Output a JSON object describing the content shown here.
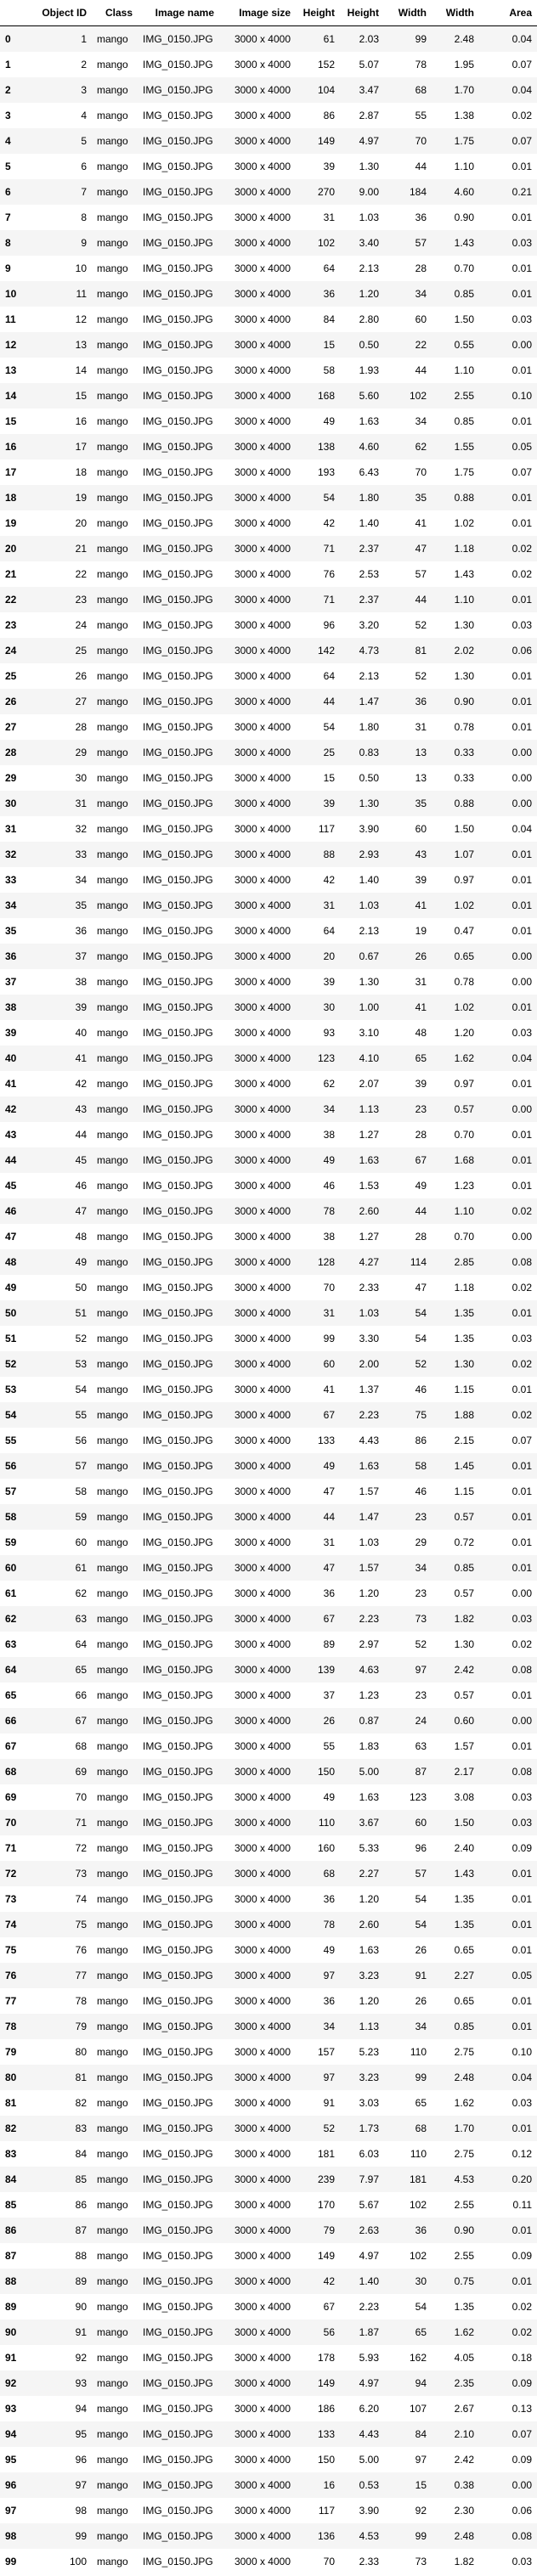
{
  "table": {
    "columns": [
      "",
      "Object ID",
      "Class",
      "Image name",
      "Image size",
      "Height",
      "Height",
      "Width",
      "Width",
      "Area"
    ],
    "rows": [
      [
        "0",
        "1",
        "mango",
        "IMG_0150.JPG",
        "3000 x 4000",
        "61",
        "2.03",
        "99",
        "2.48",
        "0.04"
      ],
      [
        "1",
        "2",
        "mango",
        "IMG_0150.JPG",
        "3000 x 4000",
        "152",
        "5.07",
        "78",
        "1.95",
        "0.07"
      ],
      [
        "2",
        "3",
        "mango",
        "IMG_0150.JPG",
        "3000 x 4000",
        "104",
        "3.47",
        "68",
        "1.70",
        "0.04"
      ],
      [
        "3",
        "4",
        "mango",
        "IMG_0150.JPG",
        "3000 x 4000",
        "86",
        "2.87",
        "55",
        "1.38",
        "0.02"
      ],
      [
        "4",
        "5",
        "mango",
        "IMG_0150.JPG",
        "3000 x 4000",
        "149",
        "4.97",
        "70",
        "1.75",
        "0.07"
      ],
      [
        "5",
        "6",
        "mango",
        "IMG_0150.JPG",
        "3000 x 4000",
        "39",
        "1.30",
        "44",
        "1.10",
        "0.01"
      ],
      [
        "6",
        "7",
        "mango",
        "IMG_0150.JPG",
        "3000 x 4000",
        "270",
        "9.00",
        "184",
        "4.60",
        "0.21"
      ],
      [
        "7",
        "8",
        "mango",
        "IMG_0150.JPG",
        "3000 x 4000",
        "31",
        "1.03",
        "36",
        "0.90",
        "0.01"
      ],
      [
        "8",
        "9",
        "mango",
        "IMG_0150.JPG",
        "3000 x 4000",
        "102",
        "3.40",
        "57",
        "1.43",
        "0.03"
      ],
      [
        "9",
        "10",
        "mango",
        "IMG_0150.JPG",
        "3000 x 4000",
        "64",
        "2.13",
        "28",
        "0.70",
        "0.01"
      ],
      [
        "10",
        "11",
        "mango",
        "IMG_0150.JPG",
        "3000 x 4000",
        "36",
        "1.20",
        "34",
        "0.85",
        "0.01"
      ],
      [
        "11",
        "12",
        "mango",
        "IMG_0150.JPG",
        "3000 x 4000",
        "84",
        "2.80",
        "60",
        "1.50",
        "0.03"
      ],
      [
        "12",
        "13",
        "mango",
        "IMG_0150.JPG",
        "3000 x 4000",
        "15",
        "0.50",
        "22",
        "0.55",
        "0.00"
      ],
      [
        "13",
        "14",
        "mango",
        "IMG_0150.JPG",
        "3000 x 4000",
        "58",
        "1.93",
        "44",
        "1.10",
        "0.01"
      ],
      [
        "14",
        "15",
        "mango",
        "IMG_0150.JPG",
        "3000 x 4000",
        "168",
        "5.60",
        "102",
        "2.55",
        "0.10"
      ],
      [
        "15",
        "16",
        "mango",
        "IMG_0150.JPG",
        "3000 x 4000",
        "49",
        "1.63",
        "34",
        "0.85",
        "0.01"
      ],
      [
        "16",
        "17",
        "mango",
        "IMG_0150.JPG",
        "3000 x 4000",
        "138",
        "4.60",
        "62",
        "1.55",
        "0.05"
      ],
      [
        "17",
        "18",
        "mango",
        "IMG_0150.JPG",
        "3000 x 4000",
        "193",
        "6.43",
        "70",
        "1.75",
        "0.07"
      ],
      [
        "18",
        "19",
        "mango",
        "IMG_0150.JPG",
        "3000 x 4000",
        "54",
        "1.80",
        "35",
        "0.88",
        "0.01"
      ],
      [
        "19",
        "20",
        "mango",
        "IMG_0150.JPG",
        "3000 x 4000",
        "42",
        "1.40",
        "41",
        "1.02",
        "0.01"
      ],
      [
        "20",
        "21",
        "mango",
        "IMG_0150.JPG",
        "3000 x 4000",
        "71",
        "2.37",
        "47",
        "1.18",
        "0.02"
      ],
      [
        "21",
        "22",
        "mango",
        "IMG_0150.JPG",
        "3000 x 4000",
        "76",
        "2.53",
        "57",
        "1.43",
        "0.02"
      ],
      [
        "22",
        "23",
        "mango",
        "IMG_0150.JPG",
        "3000 x 4000",
        "71",
        "2.37",
        "44",
        "1.10",
        "0.01"
      ],
      [
        "23",
        "24",
        "mango",
        "IMG_0150.JPG",
        "3000 x 4000",
        "96",
        "3.20",
        "52",
        "1.30",
        "0.03"
      ],
      [
        "24",
        "25",
        "mango",
        "IMG_0150.JPG",
        "3000 x 4000",
        "142",
        "4.73",
        "81",
        "2.02",
        "0.06"
      ],
      [
        "25",
        "26",
        "mango",
        "IMG_0150.JPG",
        "3000 x 4000",
        "64",
        "2.13",
        "52",
        "1.30",
        "0.01"
      ],
      [
        "26",
        "27",
        "mango",
        "IMG_0150.JPG",
        "3000 x 4000",
        "44",
        "1.47",
        "36",
        "0.90",
        "0.01"
      ],
      [
        "27",
        "28",
        "mango",
        "IMG_0150.JPG",
        "3000 x 4000",
        "54",
        "1.80",
        "31",
        "0.78",
        "0.01"
      ],
      [
        "28",
        "29",
        "mango",
        "IMG_0150.JPG",
        "3000 x 4000",
        "25",
        "0.83",
        "13",
        "0.33",
        "0.00"
      ],
      [
        "29",
        "30",
        "mango",
        "IMG_0150.JPG",
        "3000 x 4000",
        "15",
        "0.50",
        "13",
        "0.33",
        "0.00"
      ],
      [
        "30",
        "31",
        "mango",
        "IMG_0150.JPG",
        "3000 x 4000",
        "39",
        "1.30",
        "35",
        "0.88",
        "0.00"
      ],
      [
        "31",
        "32",
        "mango",
        "IMG_0150.JPG",
        "3000 x 4000",
        "117",
        "3.90",
        "60",
        "1.50",
        "0.04"
      ],
      [
        "32",
        "33",
        "mango",
        "IMG_0150.JPG",
        "3000 x 4000",
        "88",
        "2.93",
        "43",
        "1.07",
        "0.01"
      ],
      [
        "33",
        "34",
        "mango",
        "IMG_0150.JPG",
        "3000 x 4000",
        "42",
        "1.40",
        "39",
        "0.97",
        "0.01"
      ],
      [
        "34",
        "35",
        "mango",
        "IMG_0150.JPG",
        "3000 x 4000",
        "31",
        "1.03",
        "41",
        "1.02",
        "0.01"
      ],
      [
        "35",
        "36",
        "mango",
        "IMG_0150.JPG",
        "3000 x 4000",
        "64",
        "2.13",
        "19",
        "0.47",
        "0.01"
      ],
      [
        "36",
        "37",
        "mango",
        "IMG_0150.JPG",
        "3000 x 4000",
        "20",
        "0.67",
        "26",
        "0.65",
        "0.00"
      ],
      [
        "37",
        "38",
        "mango",
        "IMG_0150.JPG",
        "3000 x 4000",
        "39",
        "1.30",
        "31",
        "0.78",
        "0.00"
      ],
      [
        "38",
        "39",
        "mango",
        "IMG_0150.JPG",
        "3000 x 4000",
        "30",
        "1.00",
        "41",
        "1.02",
        "0.01"
      ],
      [
        "39",
        "40",
        "mango",
        "IMG_0150.JPG",
        "3000 x 4000",
        "93",
        "3.10",
        "48",
        "1.20",
        "0.03"
      ],
      [
        "40",
        "41",
        "mango",
        "IMG_0150.JPG",
        "3000 x 4000",
        "123",
        "4.10",
        "65",
        "1.62",
        "0.04"
      ],
      [
        "41",
        "42",
        "mango",
        "IMG_0150.JPG",
        "3000 x 4000",
        "62",
        "2.07",
        "39",
        "0.97",
        "0.01"
      ],
      [
        "42",
        "43",
        "mango",
        "IMG_0150.JPG",
        "3000 x 4000",
        "34",
        "1.13",
        "23",
        "0.57",
        "0.00"
      ],
      [
        "43",
        "44",
        "mango",
        "IMG_0150.JPG",
        "3000 x 4000",
        "38",
        "1.27",
        "28",
        "0.70",
        "0.01"
      ],
      [
        "44",
        "45",
        "mango",
        "IMG_0150.JPG",
        "3000 x 4000",
        "49",
        "1.63",
        "67",
        "1.68",
        "0.01"
      ],
      [
        "45",
        "46",
        "mango",
        "IMG_0150.JPG",
        "3000 x 4000",
        "46",
        "1.53",
        "49",
        "1.23",
        "0.01"
      ],
      [
        "46",
        "47",
        "mango",
        "IMG_0150.JPG",
        "3000 x 4000",
        "78",
        "2.60",
        "44",
        "1.10",
        "0.02"
      ],
      [
        "47",
        "48",
        "mango",
        "IMG_0150.JPG",
        "3000 x 4000",
        "38",
        "1.27",
        "28",
        "0.70",
        "0.00"
      ],
      [
        "48",
        "49",
        "mango",
        "IMG_0150.JPG",
        "3000 x 4000",
        "128",
        "4.27",
        "114",
        "2.85",
        "0.08"
      ],
      [
        "49",
        "50",
        "mango",
        "IMG_0150.JPG",
        "3000 x 4000",
        "70",
        "2.33",
        "47",
        "1.18",
        "0.02"
      ],
      [
        "50",
        "51",
        "mango",
        "IMG_0150.JPG",
        "3000 x 4000",
        "31",
        "1.03",
        "54",
        "1.35",
        "0.01"
      ],
      [
        "51",
        "52",
        "mango",
        "IMG_0150.JPG",
        "3000 x 4000",
        "99",
        "3.30",
        "54",
        "1.35",
        "0.03"
      ],
      [
        "52",
        "53",
        "mango",
        "IMG_0150.JPG",
        "3000 x 4000",
        "60",
        "2.00",
        "52",
        "1.30",
        "0.02"
      ],
      [
        "53",
        "54",
        "mango",
        "IMG_0150.JPG",
        "3000 x 4000",
        "41",
        "1.37",
        "46",
        "1.15",
        "0.01"
      ],
      [
        "54",
        "55",
        "mango",
        "IMG_0150.JPG",
        "3000 x 4000",
        "67",
        "2.23",
        "75",
        "1.88",
        "0.02"
      ],
      [
        "55",
        "56",
        "mango",
        "IMG_0150.JPG",
        "3000 x 4000",
        "133",
        "4.43",
        "86",
        "2.15",
        "0.07"
      ],
      [
        "56",
        "57",
        "mango",
        "IMG_0150.JPG",
        "3000 x 4000",
        "49",
        "1.63",
        "58",
        "1.45",
        "0.01"
      ],
      [
        "57",
        "58",
        "mango",
        "IMG_0150.JPG",
        "3000 x 4000",
        "47",
        "1.57",
        "46",
        "1.15",
        "0.01"
      ],
      [
        "58",
        "59",
        "mango",
        "IMG_0150.JPG",
        "3000 x 4000",
        "44",
        "1.47",
        "23",
        "0.57",
        "0.01"
      ],
      [
        "59",
        "60",
        "mango",
        "IMG_0150.JPG",
        "3000 x 4000",
        "31",
        "1.03",
        "29",
        "0.72",
        "0.01"
      ],
      [
        "60",
        "61",
        "mango",
        "IMG_0150.JPG",
        "3000 x 4000",
        "47",
        "1.57",
        "34",
        "0.85",
        "0.01"
      ],
      [
        "61",
        "62",
        "mango",
        "IMG_0150.JPG",
        "3000 x 4000",
        "36",
        "1.20",
        "23",
        "0.57",
        "0.00"
      ],
      [
        "62",
        "63",
        "mango",
        "IMG_0150.JPG",
        "3000 x 4000",
        "67",
        "2.23",
        "73",
        "1.82",
        "0.03"
      ],
      [
        "63",
        "64",
        "mango",
        "IMG_0150.JPG",
        "3000 x 4000",
        "89",
        "2.97",
        "52",
        "1.30",
        "0.02"
      ],
      [
        "64",
        "65",
        "mango",
        "IMG_0150.JPG",
        "3000 x 4000",
        "139",
        "4.63",
        "97",
        "2.42",
        "0.08"
      ],
      [
        "65",
        "66",
        "mango",
        "IMG_0150.JPG",
        "3000 x 4000",
        "37",
        "1.23",
        "23",
        "0.57",
        "0.01"
      ],
      [
        "66",
        "67",
        "mango",
        "IMG_0150.JPG",
        "3000 x 4000",
        "26",
        "0.87",
        "24",
        "0.60",
        "0.00"
      ],
      [
        "67",
        "68",
        "mango",
        "IMG_0150.JPG",
        "3000 x 4000",
        "55",
        "1.83",
        "63",
        "1.57",
        "0.01"
      ],
      [
        "68",
        "69",
        "mango",
        "IMG_0150.JPG",
        "3000 x 4000",
        "150",
        "5.00",
        "87",
        "2.17",
        "0.08"
      ],
      [
        "69",
        "70",
        "mango",
        "IMG_0150.JPG",
        "3000 x 4000",
        "49",
        "1.63",
        "123",
        "3.08",
        "0.03"
      ],
      [
        "70",
        "71",
        "mango",
        "IMG_0150.JPG",
        "3000 x 4000",
        "110",
        "3.67",
        "60",
        "1.50",
        "0.03"
      ],
      [
        "71",
        "72",
        "mango",
        "IMG_0150.JPG",
        "3000 x 4000",
        "160",
        "5.33",
        "96",
        "2.40",
        "0.09"
      ],
      [
        "72",
        "73",
        "mango",
        "IMG_0150.JPG",
        "3000 x 4000",
        "68",
        "2.27",
        "57",
        "1.43",
        "0.01"
      ],
      [
        "73",
        "74",
        "mango",
        "IMG_0150.JPG",
        "3000 x 4000",
        "36",
        "1.20",
        "54",
        "1.35",
        "0.01"
      ],
      [
        "74",
        "75",
        "mango",
        "IMG_0150.JPG",
        "3000 x 4000",
        "78",
        "2.60",
        "54",
        "1.35",
        "0.01"
      ],
      [
        "75",
        "76",
        "mango",
        "IMG_0150.JPG",
        "3000 x 4000",
        "49",
        "1.63",
        "26",
        "0.65",
        "0.01"
      ],
      [
        "76",
        "77",
        "mango",
        "IMG_0150.JPG",
        "3000 x 4000",
        "97",
        "3.23",
        "91",
        "2.27",
        "0.05"
      ],
      [
        "77",
        "78",
        "mango",
        "IMG_0150.JPG",
        "3000 x 4000",
        "36",
        "1.20",
        "26",
        "0.65",
        "0.01"
      ],
      [
        "78",
        "79",
        "mango",
        "IMG_0150.JPG",
        "3000 x 4000",
        "34",
        "1.13",
        "34",
        "0.85",
        "0.01"
      ],
      [
        "79",
        "80",
        "mango",
        "IMG_0150.JPG",
        "3000 x 4000",
        "157",
        "5.23",
        "110",
        "2.75",
        "0.10"
      ],
      [
        "80",
        "81",
        "mango",
        "IMG_0150.JPG",
        "3000 x 4000",
        "97",
        "3.23",
        "99",
        "2.48",
        "0.04"
      ],
      [
        "81",
        "82",
        "mango",
        "IMG_0150.JPG",
        "3000 x 4000",
        "91",
        "3.03",
        "65",
        "1.62",
        "0.03"
      ],
      [
        "82",
        "83",
        "mango",
        "IMG_0150.JPG",
        "3000 x 4000",
        "52",
        "1.73",
        "68",
        "1.70",
        "0.01"
      ],
      [
        "83",
        "84",
        "mango",
        "IMG_0150.JPG",
        "3000 x 4000",
        "181",
        "6.03",
        "110",
        "2.75",
        "0.12"
      ],
      [
        "84",
        "85",
        "mango",
        "IMG_0150.JPG",
        "3000 x 4000",
        "239",
        "7.97",
        "181",
        "4.53",
        "0.20"
      ],
      [
        "85",
        "86",
        "mango",
        "IMG_0150.JPG",
        "3000 x 4000",
        "170",
        "5.67",
        "102",
        "2.55",
        "0.11"
      ],
      [
        "86",
        "87",
        "mango",
        "IMG_0150.JPG",
        "3000 x 4000",
        "79",
        "2.63",
        "36",
        "0.90",
        "0.01"
      ],
      [
        "87",
        "88",
        "mango",
        "IMG_0150.JPG",
        "3000 x 4000",
        "149",
        "4.97",
        "102",
        "2.55",
        "0.09"
      ],
      [
        "88",
        "89",
        "mango",
        "IMG_0150.JPG",
        "3000 x 4000",
        "42",
        "1.40",
        "30",
        "0.75",
        "0.01"
      ],
      [
        "89",
        "90",
        "mango",
        "IMG_0150.JPG",
        "3000 x 4000",
        "67",
        "2.23",
        "54",
        "1.35",
        "0.02"
      ],
      [
        "90",
        "91",
        "mango",
        "IMG_0150.JPG",
        "3000 x 4000",
        "56",
        "1.87",
        "65",
        "1.62",
        "0.02"
      ],
      [
        "91",
        "92",
        "mango",
        "IMG_0150.JPG",
        "3000 x 4000",
        "178",
        "5.93",
        "162",
        "4.05",
        "0.18"
      ],
      [
        "92",
        "93",
        "mango",
        "IMG_0150.JPG",
        "3000 x 4000",
        "149",
        "4.97",
        "94",
        "2.35",
        "0.09"
      ],
      [
        "93",
        "94",
        "mango",
        "IMG_0150.JPG",
        "3000 x 4000",
        "186",
        "6.20",
        "107",
        "2.67",
        "0.13"
      ],
      [
        "94",
        "95",
        "mango",
        "IMG_0150.JPG",
        "3000 x 4000",
        "133",
        "4.43",
        "84",
        "2.10",
        "0.07"
      ],
      [
        "95",
        "96",
        "mango",
        "IMG_0150.JPG",
        "3000 x 4000",
        "150",
        "5.00",
        "97",
        "2.42",
        "0.09"
      ],
      [
        "96",
        "97",
        "mango",
        "IMG_0150.JPG",
        "3000 x 4000",
        "16",
        "0.53",
        "15",
        "0.38",
        "0.00"
      ],
      [
        "97",
        "98",
        "mango",
        "IMG_0150.JPG",
        "3000 x 4000",
        "117",
        "3.90",
        "92",
        "2.30",
        "0.06"
      ],
      [
        "98",
        "99",
        "mango",
        "IMG_0150.JPG",
        "3000 x 4000",
        "136",
        "4.53",
        "99",
        "2.48",
        "0.08"
      ],
      [
        "99",
        "100",
        "mango",
        "IMG_0150.JPG",
        "3000 x 4000",
        "70",
        "2.33",
        "73",
        "1.82",
        "0.03"
      ]
    ]
  }
}
